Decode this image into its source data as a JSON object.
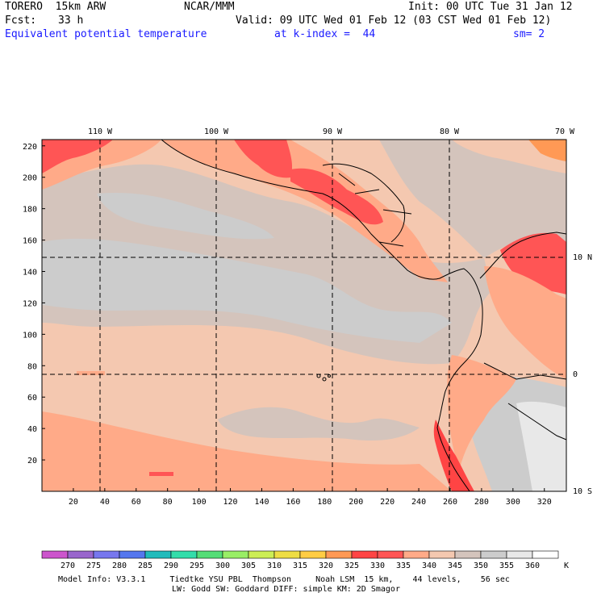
{
  "header": {
    "model": "TORERO  15km ARW",
    "center": "NCAR/MMM",
    "init": "Init: 00 UTC Tue 31 Jan 12",
    "fcst_label": "Fcst:",
    "fcst_value": "33 h",
    "valid": "Valid: 09 UTC Wed 01 Feb 12 (03 CST Wed 01 Feb 12)",
    "field": "Equivalent potential temperature",
    "level": "at k-index =  44",
    "smooth": "sm= 2"
  },
  "map": {
    "lon_labels": [
      "110 W",
      "100 W",
      "90 W",
      "80 W",
      "70 W"
    ],
    "lat_labels": [
      "10 N",
      "0",
      "10 S"
    ],
    "y_ticks": [
      "220",
      "200",
      "180",
      "160",
      "140",
      "120",
      "100",
      "80",
      "60",
      "40",
      "20"
    ],
    "x_ticks": [
      "20",
      "40",
      "60",
      "80",
      "100",
      "120",
      "140",
      "160",
      "180",
      "200",
      "220",
      "240",
      "260",
      "280",
      "300",
      "320"
    ]
  },
  "colorbar": {
    "labels": [
      "270",
      "275",
      "280",
      "285",
      "290",
      "295",
      "300",
      "305",
      "310",
      "315",
      "320",
      "325",
      "330",
      "335",
      "340",
      "345",
      "350",
      "355",
      "360"
    ],
    "unit": "K",
    "colors": [
      "#cc55cc",
      "#9966cc",
      "#7777ee",
      "#5577ee",
      "#22bbbb",
      "#33ddaa",
      "#55dd77",
      "#99ee66",
      "#ccee55",
      "#eedd44",
      "#ffcc44",
      "#ff9955",
      "#ff4444",
      "#ff5555",
      "#ffaa88",
      "#f4c8b0",
      "#d4c4bc",
      "#cccccc",
      "#e8e8e8",
      "#ffffff"
    ]
  },
  "footer": {
    "line1": "Model Info: V3.3.1     Tiedtke YSU PBL  Thompson     Noah LSM  15 km,    44 levels,    56 sec",
    "line2": "LW: Godd SW: Goddard DIFF: simple KM: 2D Smagor"
  }
}
